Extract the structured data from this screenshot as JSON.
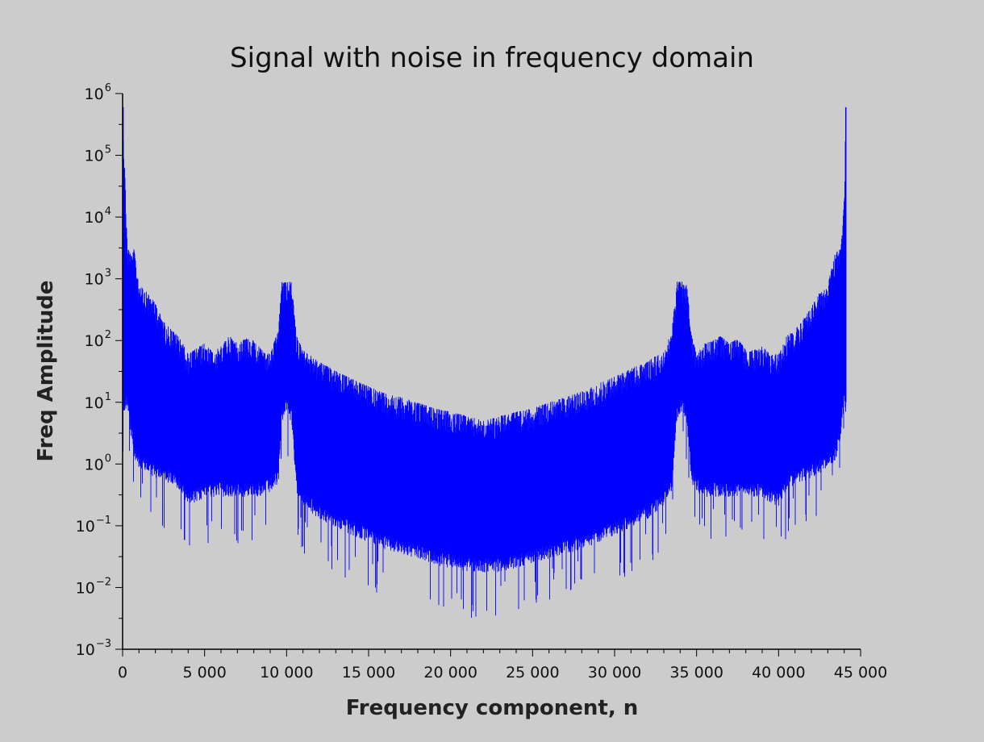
{
  "chart_data": {
    "type": "line",
    "title": "Signal with noise in frequency domain",
    "xlabel": "Frequency component, n",
    "ylabel": "Freq Amplitude",
    "xlim": [
      0,
      45000
    ],
    "ylim": [
      0.001,
      1000000
    ],
    "yscale": "log",
    "grid": false,
    "color": "#0000ff",
    "x_ticks": [
      {
        "value": 0,
        "label": "0"
      },
      {
        "value": 5000,
        "label": "5 000"
      },
      {
        "value": 10000,
        "label": "10 000"
      },
      {
        "value": 15000,
        "label": "15 000"
      },
      {
        "value": 20000,
        "label": "20 000"
      },
      {
        "value": 25000,
        "label": "25 000"
      },
      {
        "value": 30000,
        "label": "30 000"
      },
      {
        "value": 35000,
        "label": "35 000"
      },
      {
        "value": 40000,
        "label": "40 000"
      },
      {
        "value": 45000,
        "label": "45 000"
      }
    ],
    "y_ticks": [
      {
        "value": 0.001,
        "base": "10",
        "exp": "−3"
      },
      {
        "value": 0.01,
        "base": "10",
        "exp": "−2"
      },
      {
        "value": 0.1,
        "base": "10",
        "exp": "−1"
      },
      {
        "value": 1,
        "base": "10",
        "exp": "0"
      },
      {
        "value": 10,
        "base": "10",
        "exp": "1"
      },
      {
        "value": 100,
        "base": "10",
        "exp": "2"
      },
      {
        "value": 1000,
        "base": "10",
        "exp": "3"
      },
      {
        "value": 10000,
        "base": "10",
        "exp": "4"
      },
      {
        "value": 100000,
        "base": "10",
        "exp": "5"
      },
      {
        "value": 1000000,
        "base": "10",
        "exp": "6"
      }
    ],
    "series": [
      {
        "x": [
          0,
          300,
          500,
          700,
          1000,
          1500,
          2000,
          2500,
          3000,
          3500,
          4000,
          4500,
          5000,
          5500,
          6000,
          6500,
          7000,
          7500,
          8000,
          8500,
          9000,
          9500,
          9700,
          10000,
          10300,
          10600,
          11000,
          12000,
          13000,
          14000,
          15000,
          16000,
          17000,
          18000,
          19000,
          20000,
          21000,
          22050,
          23000,
          24000,
          25000,
          26000,
          27000,
          28000,
          29000,
          30000,
          31000,
          32000,
          33000,
          33500,
          33800,
          34100,
          34400,
          34700,
          35000,
          35500,
          36000,
          36500,
          37000,
          37500,
          38000,
          38500,
          39000,
          39500,
          40000,
          40500,
          41000,
          41500,
          42000,
          42500,
          43000,
          43500,
          43800,
          44000,
          44100
        ],
        "upper": [
          600000,
          3000,
          3000,
          3000,
          800,
          600,
          400,
          200,
          150,
          110,
          60,
          75,
          90,
          65,
          80,
          120,
          90,
          110,
          100,
          70,
          60,
          150,
          900,
          900,
          900,
          120,
          70,
          45,
          32,
          24,
          18,
          14,
          12,
          10,
          8,
          7,
          6,
          5,
          6,
          7,
          8,
          10,
          12,
          15,
          20,
          26,
          35,
          45,
          70,
          150,
          900,
          900,
          900,
          120,
          60,
          90,
          100,
          120,
          90,
          110,
          70,
          70,
          80,
          60,
          60,
          120,
          150,
          220,
          350,
          600,
          800,
          3000,
          3000,
          20000,
          600000
        ],
        "lower": [
          10,
          15,
          5,
          2,
          1.5,
          1.2,
          1,
          0.9,
          0.8,
          0.6,
          0.35,
          0.4,
          0.5,
          0.5,
          0.5,
          0.5,
          0.5,
          0.5,
          0.5,
          0.5,
          0.6,
          0.8,
          8,
          12,
          8,
          0.6,
          0.35,
          0.22,
          0.16,
          0.12,
          0.09,
          0.07,
          0.06,
          0.05,
          0.04,
          0.035,
          0.03,
          0.03,
          0.03,
          0.035,
          0.04,
          0.05,
          0.06,
          0.07,
          0.09,
          0.12,
          0.16,
          0.22,
          0.35,
          0.6,
          8,
          12,
          8,
          0.8,
          0.6,
          0.5,
          0.5,
          0.5,
          0.5,
          0.5,
          0.5,
          0.5,
          0.5,
          0.4,
          0.35,
          0.6,
          0.8,
          0.9,
          1,
          1.2,
          1.5,
          2,
          5,
          15,
          10
        ]
      }
    ]
  }
}
